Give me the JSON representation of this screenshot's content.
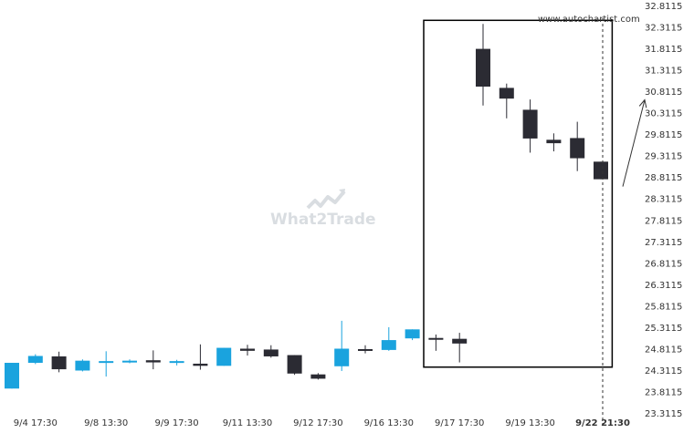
{
  "site_label": "www.autochartist.com",
  "watermark": "What2Trade",
  "colors": {
    "up": "#1aa3de",
    "down": "#2b2b33",
    "box": "#000000",
    "background": "#ffffff",
    "watermark": "#d9dde1"
  },
  "chart_data": {
    "type": "candlestick",
    "title": "",
    "xlabel": "",
    "ylabel": "",
    "ylim": [
      23.3115,
      32.8115
    ],
    "y_ticks": [
      "32.8115",
      "32.3115",
      "31.8115",
      "31.3115",
      "30.8115",
      "30.3115",
      "29.8115",
      "29.3115",
      "28.8115",
      "28.3115",
      "27.8115",
      "27.3115",
      "26.8115",
      "26.3115",
      "25.8115",
      "25.3115",
      "24.8115",
      "24.3115",
      "23.8115",
      "23.3115"
    ],
    "x_ticks": [
      {
        "label": "9/4 17:30",
        "index": 1
      },
      {
        "label": "9/8 13:30",
        "index": 4
      },
      {
        "label": "9/9 17:30",
        "index": 7
      },
      {
        "label": "9/11 13:30",
        "index": 10
      },
      {
        "label": "9/12 17:30",
        "index": 13
      },
      {
        "label": "9/16 13:30",
        "index": 16
      },
      {
        "label": "9/17 17:30",
        "index": 19
      },
      {
        "label": "9/19 13:30",
        "index": 22
      },
      {
        "label": "9/22 21:30",
        "index": 25,
        "bold": true
      }
    ],
    "candles": [
      {
        "open": 23.88,
        "high": 24.48,
        "low": 23.88,
        "close": 24.48
      },
      {
        "open": 24.48,
        "high": 24.68,
        "low": 24.45,
        "close": 24.64
      },
      {
        "open": 24.63,
        "high": 24.74,
        "low": 24.26,
        "close": 24.33
      },
      {
        "open": 24.3,
        "high": 24.56,
        "low": 24.28,
        "close": 24.53
      },
      {
        "open": 24.52,
        "high": 24.75,
        "low": 24.16,
        "close": 24.52
      },
      {
        "open": 24.5,
        "high": 24.56,
        "low": 24.47,
        "close": 24.53
      },
      {
        "open": 24.54,
        "high": 24.77,
        "low": 24.33,
        "close": 24.49
      },
      {
        "open": 24.48,
        "high": 24.55,
        "low": 24.42,
        "close": 24.52
      },
      {
        "open": 24.46,
        "high": 24.91,
        "low": 24.32,
        "close": 24.41
      },
      {
        "open": 24.41,
        "high": 24.83,
        "low": 24.41,
        "close": 24.83
      },
      {
        "open": 24.81,
        "high": 24.9,
        "low": 24.65,
        "close": 24.76
      },
      {
        "open": 24.79,
        "high": 24.89,
        "low": 24.6,
        "close": 24.63
      },
      {
        "open": 24.66,
        "high": 24.66,
        "low": 24.2,
        "close": 24.23
      },
      {
        "open": 24.21,
        "high": 24.24,
        "low": 24.09,
        "close": 24.11
      },
      {
        "open": 24.4,
        "high": 25.46,
        "low": 24.29,
        "close": 24.81
      },
      {
        "open": 24.8,
        "high": 24.89,
        "low": 24.7,
        "close": 24.78
      },
      {
        "open": 24.78,
        "high": 25.31,
        "low": 24.76,
        "close": 25.01
      },
      {
        "open": 25.05,
        "high": 25.26,
        "low": 25.01,
        "close": 25.26
      },
      {
        "open": 25.06,
        "high": 25.14,
        "low": 24.76,
        "close": 25.02
      },
      {
        "open": 25.04,
        "high": 25.18,
        "low": 24.49,
        "close": 24.93
      },
      {
        "open": 31.8,
        "high": 32.38,
        "low": 30.48,
        "close": 30.92
      },
      {
        "open": 30.89,
        "high": 30.99,
        "low": 30.18,
        "close": 30.64
      },
      {
        "open": 30.38,
        "high": 30.62,
        "low": 29.38,
        "close": 29.71
      },
      {
        "open": 29.68,
        "high": 29.83,
        "low": 29.41,
        "close": 29.6
      },
      {
        "open": 29.72,
        "high": 30.1,
        "low": 28.95,
        "close": 29.25
      },
      {
        "open": 29.17,
        "high": 29.17,
        "low": 28.76,
        "close": 28.76
      }
    ],
    "highlight_box": {
      "from_index": 18,
      "to_index": 25,
      "y_top": 32.38,
      "y_bottom": 24.38
    },
    "current_index": 25,
    "projection_arrow": {
      "from_y": 28.76,
      "to_y": 30.57
    }
  }
}
